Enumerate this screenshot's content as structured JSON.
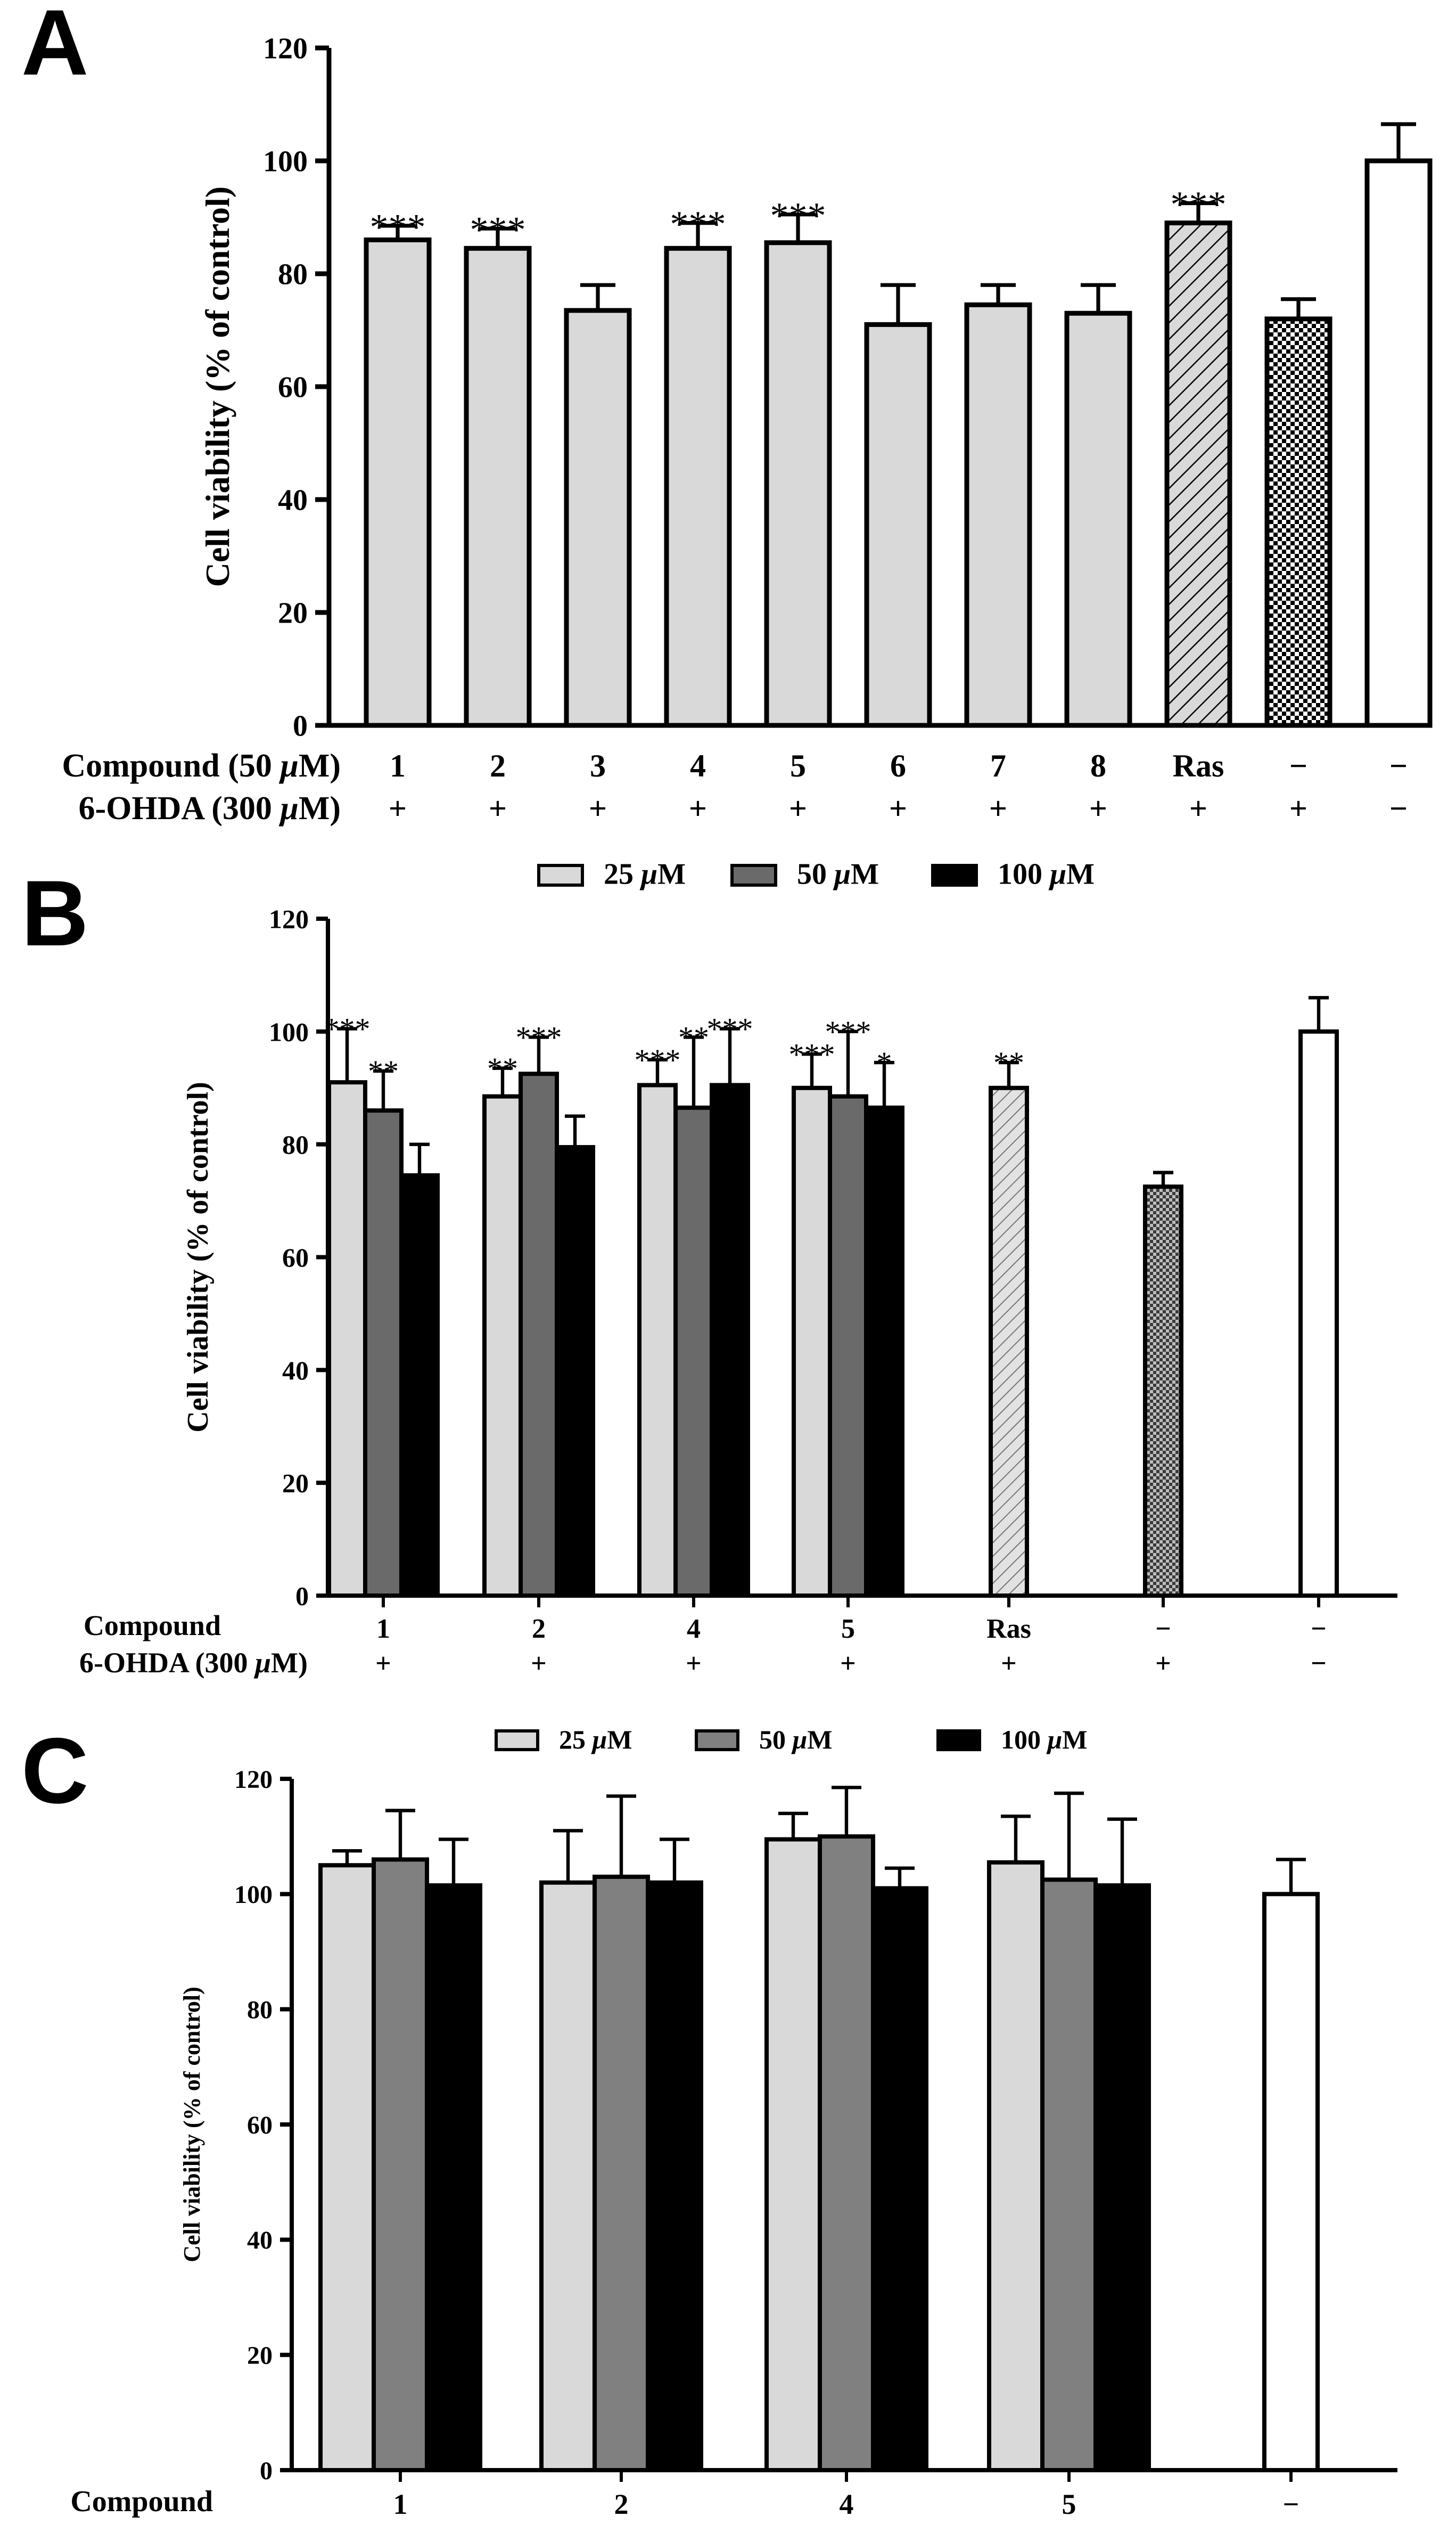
{
  "colors": {
    "bar_light": "#d9d9d9",
    "bar_mid": "#6a6a6a",
    "bar_mid_c": "#808080",
    "bar_dark": "#000000",
    "control": "#ffffff",
    "stroke": "#000000"
  },
  "legend": {
    "items": [
      {
        "label_pre": "25 ",
        "label_mu": "μ",
        "label_post": "M",
        "color": "#d9d9d9"
      },
      {
        "label_pre": "50 ",
        "label_mu": "μ",
        "label_post": "M",
        "color": "#6a6a6a"
      },
      {
        "label_pre": "100 ",
        "label_mu": "μ",
        "label_post": "M",
        "color": "#000000"
      }
    ]
  },
  "chart_data": [
    {
      "panel": "A",
      "type": "bar",
      "ylabel": "Cell viability (% of control)",
      "ylim": [
        0,
        120
      ],
      "yticks": [
        0,
        20,
        40,
        60,
        80,
        100,
        120
      ],
      "rows": [
        {
          "label": "Compound  (50 μM)"
        },
        {
          "label": "6-OHDA (300 μM)"
        }
      ],
      "groups": [
        {
          "compound": "1",
          "ohda": "+",
          "value": 86,
          "error": 2.5,
          "sig": "***",
          "style": "light"
        },
        {
          "compound": "2",
          "ohda": "+",
          "value": 84.5,
          "error": 3.5,
          "sig": "***",
          "style": "light"
        },
        {
          "compound": "3",
          "ohda": "+",
          "value": 73.5,
          "error": 4.5,
          "sig": "",
          "style": "light"
        },
        {
          "compound": "4",
          "ohda": "+",
          "value": 84.5,
          "error": 4.5,
          "sig": "***",
          "style": "light"
        },
        {
          "compound": "5",
          "ohda": "+",
          "value": 85.5,
          "error": 5,
          "sig": "***",
          "style": "light"
        },
        {
          "compound": "6",
          "ohda": "+",
          "value": 71,
          "error": 7,
          "sig": "",
          "style": "light"
        },
        {
          "compound": "7",
          "ohda": "+",
          "value": 74.5,
          "error": 3.5,
          "sig": "",
          "style": "light"
        },
        {
          "compound": "8",
          "ohda": "+",
          "value": 73,
          "error": 5,
          "sig": "",
          "style": "light"
        },
        {
          "compound": "Ras",
          "ohda": "+",
          "value": 89,
          "error": 3.5,
          "sig": "***",
          "style": "hatch"
        },
        {
          "compound": "−",
          "ohda": "+",
          "value": 72,
          "error": 3.5,
          "sig": "",
          "style": "check"
        },
        {
          "compound": "−",
          "ohda": "−",
          "value": 100,
          "error": 6.5,
          "sig": "",
          "style": "white"
        }
      ]
    },
    {
      "panel": "B",
      "type": "bar",
      "ylabel": "Cell viability (% of control)",
      "ylim": [
        0,
        120
      ],
      "yticks": [
        0,
        20,
        40,
        60,
        80,
        100,
        120
      ],
      "rows": [
        {
          "label": "Compound"
        },
        {
          "label": "6-OHDA (300 μM)"
        }
      ],
      "series": [
        "25 μM",
        "50 μM",
        "100 μM"
      ],
      "groups": [
        {
          "compound": "1",
          "ohda": "+",
          "bars": [
            {
              "value": 91,
              "error": 9.5,
              "sig": "***"
            },
            {
              "value": 86,
              "error": 7,
              "sig": "**"
            },
            {
              "value": 74.5,
              "error": 5.5,
              "sig": ""
            }
          ]
        },
        {
          "compound": "2",
          "ohda": "+",
          "bars": [
            {
              "value": 88.5,
              "error": 5,
              "sig": "**"
            },
            {
              "value": 92.5,
              "error": 6.5,
              "sig": "***"
            },
            {
              "value": 79.5,
              "error": 5.5,
              "sig": ""
            }
          ]
        },
        {
          "compound": "4",
          "ohda": "+",
          "bars": [
            {
              "value": 90.5,
              "error": 4.5,
              "sig": "***"
            },
            {
              "value": 86.5,
              "error": 12.5,
              "sig": "**"
            },
            {
              "value": 90.5,
              "error": 10,
              "sig": "***"
            }
          ]
        },
        {
          "compound": "5",
          "ohda": "+",
          "bars": [
            {
              "value": 90,
              "error": 6,
              "sig": "***"
            },
            {
              "value": 88.5,
              "error": 11.5,
              "sig": "***"
            },
            {
              "value": 86.5,
              "error": 8,
              "sig": "*"
            }
          ]
        },
        {
          "compound": "Ras",
          "ohda": "+",
          "single": true,
          "value": 90,
          "error": 4.5,
          "sig": "**",
          "style": "hatch"
        },
        {
          "compound": "−",
          "ohda": "+",
          "single": true,
          "value": 72.5,
          "error": 2.5,
          "sig": "",
          "style": "check"
        },
        {
          "compound": "−",
          "ohda": "−",
          "single": true,
          "value": 100,
          "error": 6,
          "sig": "",
          "style": "white"
        }
      ]
    },
    {
      "panel": "C",
      "type": "bar",
      "ylabel": "Cell viability (% of control)",
      "ylim": [
        0,
        120
      ],
      "yticks": [
        0,
        20,
        40,
        60,
        80,
        100,
        120
      ],
      "rows": [
        {
          "label": "Compound"
        }
      ],
      "series": [
        "25 μM",
        "50 μM",
        "100 μM"
      ],
      "groups": [
        {
          "compound": "1",
          "bars": [
            {
              "value": 105,
              "error": 2.5
            },
            {
              "value": 106,
              "error": 8.5
            },
            {
              "value": 101.5,
              "error": 8
            }
          ]
        },
        {
          "compound": "2",
          "bars": [
            {
              "value": 102,
              "error": 9
            },
            {
              "value": 103,
              "error": 14
            },
            {
              "value": 102,
              "error": 7.5
            }
          ]
        },
        {
          "compound": "4",
          "bars": [
            {
              "value": 109.5,
              "error": 4.5
            },
            {
              "value": 110,
              "error": 8.5
            },
            {
              "value": 101,
              "error": 3.5
            }
          ]
        },
        {
          "compound": "5",
          "bars": [
            {
              "value": 105.5,
              "error": 8
            },
            {
              "value": 102.5,
              "error": 15
            },
            {
              "value": 101.5,
              "error": 11.5
            }
          ]
        },
        {
          "compound": "−",
          "single": true,
          "value": 100,
          "error": 6,
          "style": "white"
        }
      ]
    }
  ],
  "panels": {
    "A": {
      "letter": "A"
    },
    "B": {
      "letter": "B"
    },
    "C": {
      "letter": "C"
    }
  }
}
